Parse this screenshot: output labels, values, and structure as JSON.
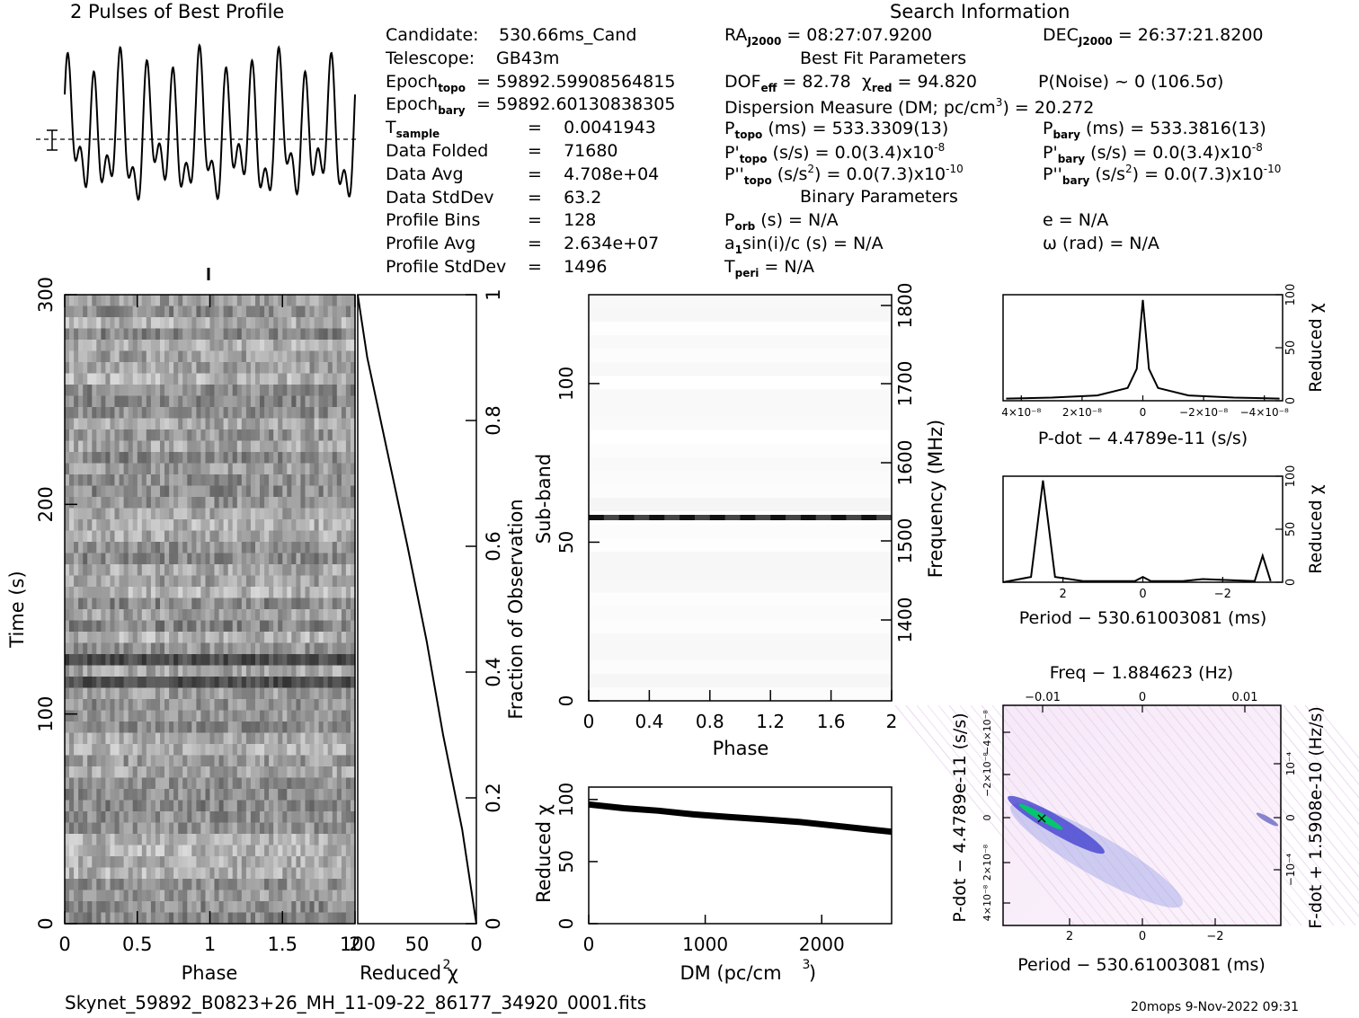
{
  "header": {
    "profile_title": "2 Pulses of Best Profile",
    "search_title": "Search Information",
    "footer_file": "Skynet_59892_B0823+26_MH_11-09-22_86177_34920_0001.fits",
    "footer_right": "20mops   9-Nov-2022 09:31"
  },
  "info_left": [
    {
      "label": "Candidate:",
      "value": "530.66ms_Cand"
    },
    {
      "label": "Telescope:",
      "value": "GB43m"
    },
    {
      "label": "Epoch",
      "sub": "topo",
      "value": "= 59892.59908564815"
    },
    {
      "label": "Epoch",
      "sub": "bary",
      "value": "= 59892.60130838305"
    },
    {
      "label": "T",
      "sub": "sample",
      "value": "=    0.0041943"
    },
    {
      "label": "Data Folded",
      "value": "=    71680"
    },
    {
      "label": "Data Avg",
      "value": "=    4.708e+04"
    },
    {
      "label": "Data StdDev",
      "value": "=    63.2"
    },
    {
      "label": "Profile Bins",
      "value": "=    128"
    },
    {
      "label": "Profile Avg",
      "value": "=    2.634e+07"
    },
    {
      "label": "Profile StdDev",
      "value": "=    1496"
    }
  ],
  "info_mid": {
    "ra": "RA",
    "ra_sub": "J2000",
    "ra_value": " = 08:27:07.9200",
    "best_fit": "Best Fit Parameters",
    "dof": "DOF",
    "dof_sub": "eff",
    "dof_value": " = 82.78",
    "chi_label": "χ",
    "chi_sub": "red",
    "chi_value": " = 94.820",
    "dm_text": "Dispersion Measure (DM; pc/cm",
    "dm_value": ") = 20.272",
    "ptopo": "P",
    "ptopo_sub": "topo",
    "ptopo_value": " (ms) =   533.3309(13)",
    "pdtopo": "P'",
    "pdtopo_value": " (s/s) = 0.0(3.4)x10",
    "pdtopo_exp": "-8",
    "pddtopo": "P''",
    "pddtopo_value": " (s/s",
    "pddtopo_value2": ") = 0.0(7.3)x10",
    "pddtopo_exp": "-10",
    "binary": "Binary Parameters",
    "porb": "P",
    "porb_sub": "orb",
    "porb_value": " (s) = N/A",
    "a1": "a",
    "a1_sub": "1",
    "a1_value": "sin(i)/c (s) = N/A",
    "tperi": "T",
    "tperi_sub": "peri",
    "tperi_value": " = N/A"
  },
  "info_right": {
    "dec": "DEC",
    "dec_sub": "J2000",
    "dec_value": " = 26:37:21.8200",
    "pnoise": "P(Noise) ~ 0    (106.5σ)",
    "pbary": "P",
    "pbary_sub": "bary",
    "pbary_value": " (ms) =  533.3816(13)",
    "pdbary": "P'",
    "pdbary_value": " (s/s) = 0.0(3.4)x10",
    "pdbary_exp": "-8",
    "pddbary": "P''",
    "pddbary_value": " (s/s",
    "pddbary_value2": ") = 0.0(7.3)x10",
    "pddbary_exp": "-10",
    "e_value": "e = N/A",
    "omega_value": "ω (rad) = N/A"
  },
  "chart_data": [
    {
      "type": "line",
      "panel": "profile",
      "title": "2 Pulses of Best Profile",
      "x": [
        0,
        0.25,
        0.5,
        0.75,
        1.0,
        1.25,
        1.5,
        1.75,
        2.0
      ],
      "note": "oscillating periodic profile"
    },
    {
      "type": "heatmap",
      "panel": "time-phase",
      "xlabel": "Phase",
      "ylabel": "Time (s)",
      "xlim": [
        0,
        2
      ],
      "ylim": [
        0,
        300
      ],
      "xticks": [
        "0",
        "0.5",
        "1",
        "1.5",
        "2"
      ],
      "yticks": [
        "0",
        "100",
        "200",
        "300"
      ]
    },
    {
      "type": "line",
      "panel": "reduced-chi2-vs-time",
      "xlabel": "Reduced χ",
      "ylabel": "Fraction of Observation",
      "xticks": [
        "100",
        "50",
        "0"
      ],
      "yticks": [
        "0",
        "0.2",
        "0.4",
        "0.6",
        "0.8",
        "1"
      ],
      "x": [
        0,
        12,
        28,
        42,
        58,
        75,
        92,
        100
      ],
      "y": [
        0,
        0.15,
        0.3,
        0.45,
        0.6,
        0.75,
        0.9,
        1.0
      ]
    },
    {
      "type": "heatmap",
      "panel": "subband-phase",
      "xlabel": "Phase",
      "ylabel": "Sub-band",
      "ylabel_right": "Frequency (MHz)",
      "xticks": [
        "0",
        "0.4",
        "0.8",
        "1.2",
        "1.6",
        "2"
      ],
      "yticks": [
        "0",
        "50",
        "100"
      ],
      "yticks_right": [
        "1400",
        "1500",
        "1600",
        "1700",
        "1800"
      ]
    },
    {
      "type": "line",
      "panel": "dm-chi2",
      "xlabel": "DM (pc/cm",
      "ylabel": "Reduced χ",
      "xticks": [
        "0",
        "1000",
        "2000"
      ],
      "yticks": [
        "0",
        "50",
        "100"
      ],
      "x": [
        0,
        300,
        600,
        900,
        1200,
        1500,
        1800,
        2100,
        2400,
        2600
      ],
      "y": [
        96,
        93,
        91,
        88,
        86,
        84,
        82,
        79,
        76,
        74
      ]
    },
    {
      "type": "line",
      "panel": "pdot-chi2",
      "xlabel": "P-dot − 4.4789e-11 (s/s)",
      "ylabel": "Reduced χ",
      "xticks": [
        "4×10⁻⁸",
        "2×10⁻⁸",
        "0",
        "−2×10⁻⁸",
        "−4×10⁻⁸"
      ],
      "yticks": [
        "0",
        "50",
        "100"
      ],
      "x": [
        -4.5,
        -3,
        -1.5,
        -0.5,
        -0.2,
        0,
        0.2,
        0.5,
        1.5,
        3,
        4.5
      ],
      "y": [
        2,
        3,
        5,
        12,
        30,
        95,
        30,
        12,
        5,
        3,
        2
      ]
    },
    {
      "type": "line",
      "panel": "period-chi2",
      "xlabel": "Period − 530.61003081 (ms)",
      "ylabel": "Reduced χ",
      "xticks": [
        "2",
        "0",
        "−2"
      ],
      "yticks": [
        "0",
        "50",
        "100"
      ],
      "x": [
        3.5,
        2.8,
        2.5,
        2.2,
        1.5,
        0.2,
        0,
        -0.2,
        -1.0,
        -1.5,
        -2.8,
        -3.0,
        -3.2
      ],
      "y": [
        0,
        5,
        96,
        5,
        1,
        1,
        5,
        1,
        1,
        3,
        1,
        25,
        1
      ]
    },
    {
      "type": "heatmap",
      "panel": "period-pdot",
      "title": "Freq − 1.884623 (Hz)",
      "xlabel": "Period − 530.61003081 (ms)",
      "ylabel": "P-dot − 4.4789e-11 (s/s)",
      "ylabel_right": "F-dot + 1.5908e-10 (Hz/s)",
      "xticks": [
        "2",
        "0",
        "−2"
      ],
      "xticks_top": [
        "−0.01",
        "0",
        "0.01"
      ],
      "yticks": [
        "4×10⁻⁸",
        "2×10⁻⁸",
        "0",
        "−2×10⁻⁸",
        "−4×10⁻⁸"
      ],
      "yticks_right": [
        "−10⁻⁴",
        "0",
        "10⁻⁴"
      ]
    }
  ],
  "colors": {
    "axis": "#000000",
    "heatmap_dark": "#222222",
    "ppdot_hot": "#00cc66",
    "ppdot_mid": "#3333cc"
  }
}
